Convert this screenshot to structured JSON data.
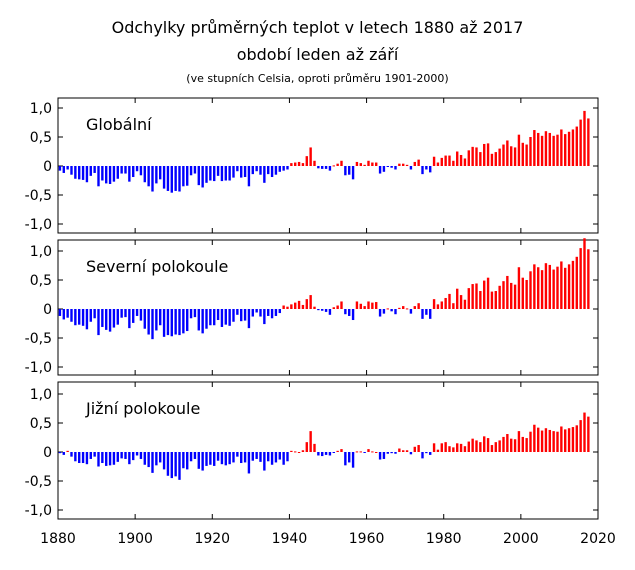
{
  "title": {
    "line1": "Odchylky průměrných teplot v letech 1880 až 2017",
    "line2": "období leden až září",
    "line3": "(ve stupních Celsia, oproti průměru 1901-2000)"
  },
  "colors": {
    "positive": "#ff0000",
    "negative": "#0000ff",
    "frame": "#000000"
  },
  "chart_data": [
    {
      "type": "bar",
      "label": "Globální",
      "x_start": 1880,
      "ylim": [
        -1.2,
        1.2
      ],
      "yticks": [
        "1,0",
        "0,5",
        "0",
        "-0,5",
        "-1,0"
      ],
      "values": [
        -0.08,
        -0.12,
        -0.06,
        -0.15,
        -0.22,
        -0.23,
        -0.24,
        -0.28,
        -0.17,
        -0.12,
        -0.35,
        -0.25,
        -0.3,
        -0.31,
        -0.27,
        -0.22,
        -0.13,
        -0.13,
        -0.27,
        -0.19,
        -0.09,
        -0.16,
        -0.28,
        -0.35,
        -0.44,
        -0.3,
        -0.23,
        -0.39,
        -0.43,
        -0.46,
        -0.43,
        -0.44,
        -0.35,
        -0.34,
        -0.16,
        -0.13,
        -0.33,
        -0.37,
        -0.29,
        -0.25,
        -0.26,
        -0.17,
        -0.26,
        -0.25,
        -0.25,
        -0.2,
        -0.09,
        -0.2,
        -0.19,
        -0.35,
        -0.14,
        -0.09,
        -0.15,
        -0.29,
        -0.14,
        -0.19,
        -0.15,
        -0.1,
        -0.08,
        -0.06,
        0.05,
        0.06,
        0.07,
        0.05,
        0.17,
        0.32,
        0.09,
        -0.04,
        -0.05,
        -0.05,
        -0.08,
        0.01,
        0.04,
        0.09,
        -0.16,
        -0.15,
        -0.23,
        0.07,
        0.05,
        0.02,
        0.09,
        0.06,
        0.06,
        -0.13,
        -0.1,
        -0.01,
        -0.03,
        -0.06,
        0.04,
        0.04,
        0.02,
        -0.06,
        0.07,
        0.11,
        -0.14,
        -0.06,
        -0.11,
        0.16,
        0.06,
        0.14,
        0.18,
        0.18,
        0.09,
        0.25,
        0.19,
        0.13,
        0.27,
        0.33,
        0.32,
        0.24,
        0.38,
        0.39,
        0.21,
        0.24,
        0.3,
        0.37,
        0.44,
        0.34,
        0.32,
        0.54,
        0.4,
        0.37,
        0.5,
        0.62,
        0.57,
        0.52,
        0.6,
        0.57,
        0.52,
        0.54,
        0.63,
        0.55,
        0.59,
        0.63,
        0.68,
        0.8,
        0.95,
        0.82
      ]
    },
    {
      "type": "bar",
      "label": "Severní polokoule",
      "x_start": 1880,
      "ylim": [
        -1.2,
        1.2
      ],
      "yticks": [
        "1,0",
        "0,5",
        "0",
        "-0,5",
        "-1,0"
      ],
      "values": [
        -0.12,
        -0.18,
        -0.15,
        -0.22,
        -0.28,
        -0.27,
        -0.29,
        -0.35,
        -0.22,
        -0.16,
        -0.45,
        -0.31,
        -0.36,
        -0.39,
        -0.32,
        -0.27,
        -0.15,
        -0.14,
        -0.33,
        -0.24,
        -0.12,
        -0.2,
        -0.34,
        -0.44,
        -0.52,
        -0.37,
        -0.28,
        -0.48,
        -0.45,
        -0.47,
        -0.44,
        -0.45,
        -0.42,
        -0.38,
        -0.16,
        -0.14,
        -0.37,
        -0.42,
        -0.34,
        -0.28,
        -0.28,
        -0.19,
        -0.31,
        -0.27,
        -0.29,
        -0.22,
        -0.1,
        -0.21,
        -0.2,
        -0.33,
        -0.13,
        -0.06,
        -0.13,
        -0.26,
        -0.12,
        -0.16,
        -0.12,
        -0.07,
        0.06,
        0.04,
        0.08,
        0.11,
        0.14,
        0.07,
        0.17,
        0.24,
        0.04,
        -0.02,
        -0.03,
        -0.05,
        -0.1,
        0.03,
        0.06,
        0.13,
        -0.09,
        -0.12,
        -0.19,
        0.13,
        0.09,
        0.05,
        0.13,
        0.11,
        0.12,
        -0.13,
        -0.08,
        0.01,
        -0.04,
        -0.09,
        0.02,
        0.05,
        0.01,
        -0.08,
        0.05,
        0.1,
        -0.17,
        -0.1,
        -0.17,
        0.17,
        0.08,
        0.13,
        0.19,
        0.26,
        0.1,
        0.35,
        0.24,
        0.16,
        0.36,
        0.43,
        0.44,
        0.31,
        0.49,
        0.54,
        0.3,
        0.31,
        0.4,
        0.48,
        0.57,
        0.45,
        0.42,
        0.72,
        0.54,
        0.5,
        0.65,
        0.77,
        0.72,
        0.67,
        0.79,
        0.76,
        0.68,
        0.73,
        0.82,
        0.71,
        0.77,
        0.83,
        0.9,
        1.05,
        1.22,
        1.03
      ]
    },
    {
      "type": "bar",
      "label": "Jižní polokoule",
      "x_start": 1880,
      "ylim": [
        -1.2,
        1.2
      ],
      "yticks": [
        "1,0",
        "0,5",
        "0",
        "-0,5",
        "-1,0"
      ],
      "values": [
        -0.02,
        -0.05,
        0.02,
        -0.08,
        -0.16,
        -0.19,
        -0.19,
        -0.21,
        -0.12,
        -0.08,
        -0.25,
        -0.19,
        -0.24,
        -0.23,
        -0.22,
        -0.17,
        -0.11,
        -0.12,
        -0.21,
        -0.14,
        -0.06,
        -0.12,
        -0.22,
        -0.26,
        -0.36,
        -0.23,
        -0.18,
        -0.3,
        -0.41,
        -0.45,
        -0.42,
        -0.48,
        -0.28,
        -0.3,
        -0.16,
        -0.12,
        -0.29,
        -0.32,
        -0.24,
        -0.22,
        -0.24,
        -0.15,
        -0.21,
        -0.23,
        -0.21,
        -0.18,
        -0.08,
        -0.19,
        -0.18,
        -0.37,
        -0.15,
        -0.12,
        -0.17,
        -0.32,
        -0.16,
        -0.22,
        -0.18,
        -0.13,
        -0.22,
        -0.16,
        0.02,
        0.01,
        0.0,
        0.03,
        0.17,
        0.36,
        0.14,
        -0.06,
        -0.07,
        -0.05,
        -0.06,
        -0.01,
        0.02,
        0.05,
        -0.23,
        -0.18,
        -0.27,
        0.01,
        0.01,
        -0.01,
        0.05,
        0.01,
        0.0,
        -0.13,
        -0.12,
        -0.03,
        -0.02,
        -0.03,
        0.06,
        0.03,
        0.03,
        -0.04,
        0.09,
        0.12,
        -0.11,
        -0.02,
        -0.05,
        0.15,
        0.04,
        0.15,
        0.17,
        0.1,
        0.08,
        0.15,
        0.14,
        0.1,
        0.18,
        0.23,
        0.2,
        0.17,
        0.27,
        0.24,
        0.12,
        0.17,
        0.2,
        0.26,
        0.31,
        0.23,
        0.22,
        0.36,
        0.26,
        0.24,
        0.35,
        0.47,
        0.42,
        0.37,
        0.41,
        0.38,
        0.36,
        0.35,
        0.44,
        0.39,
        0.41,
        0.43,
        0.46,
        0.55,
        0.68,
        0.61
      ]
    }
  ],
  "x_axis": {
    "ticks": [
      "1880",
      "1900",
      "1920",
      "1940",
      "1960",
      "1980",
      "2000",
      "2020"
    ],
    "range": [
      1880,
      2020
    ]
  }
}
